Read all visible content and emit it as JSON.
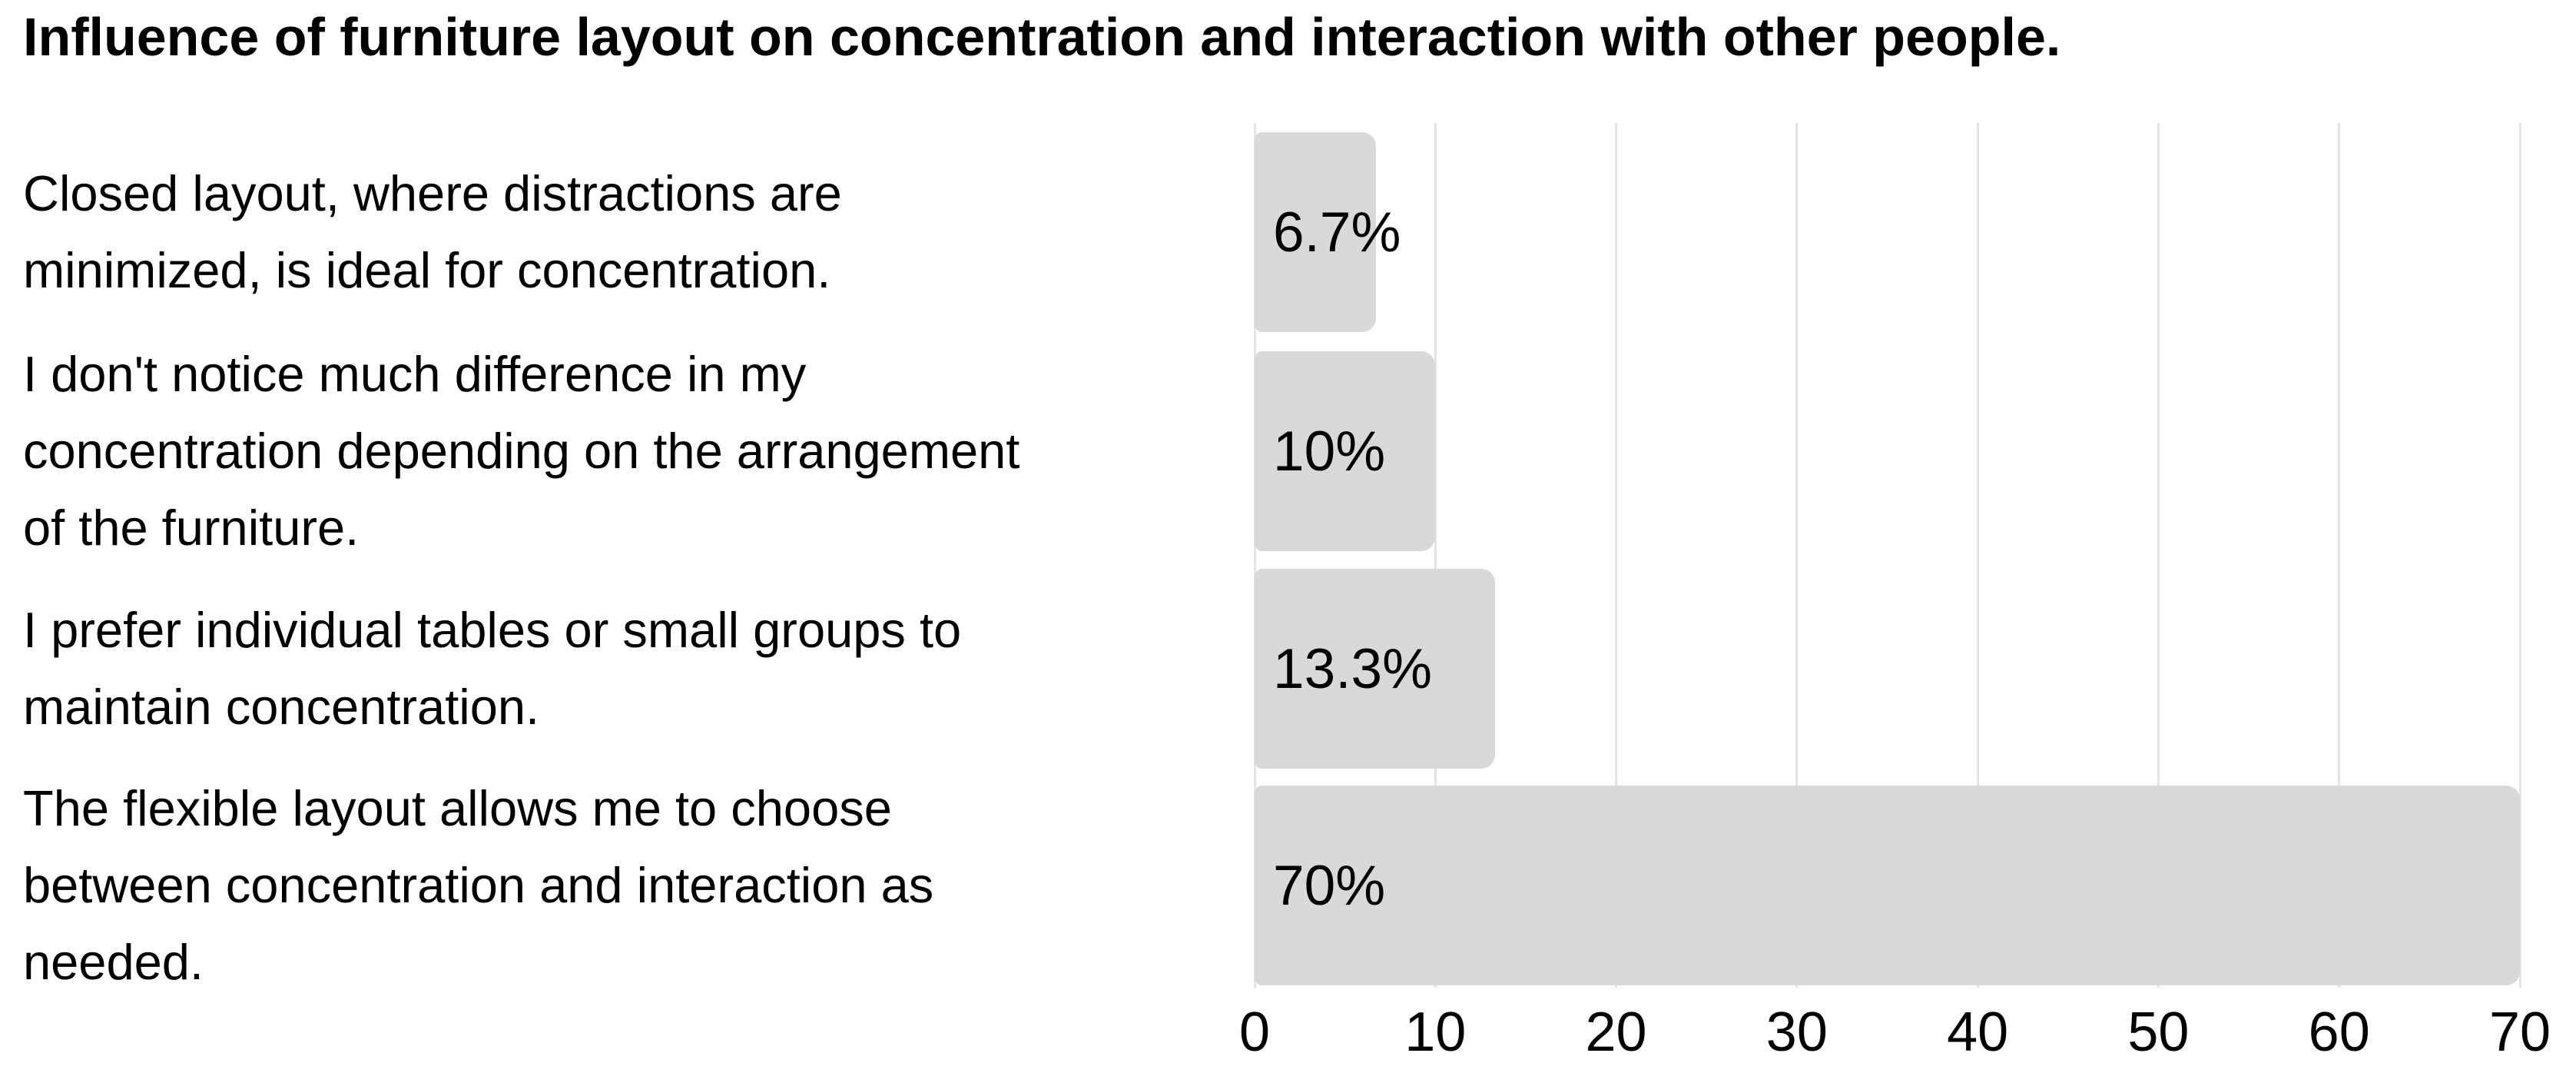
{
  "title": "Influence of furniture layout on concentration and interaction with other people.",
  "rows": [
    {
      "label": "Closed layout, where distractions are minimized, is ideal for concentration.",
      "lines": [
        "Closed layout, where distractions are",
        "minimized, is ideal for concentration."
      ],
      "value_label": "6.7%"
    },
    {
      "label": "I don't notice much difference in my concentration depending on the arrangement of the furniture.",
      "lines": [
        "I don't notice much difference in my",
        "concentration depending on the arrangement",
        "of the furniture."
      ],
      "value_label": "10%"
    },
    {
      "label": "I prefer individual tables or small groups to maintain concentration.",
      "lines": [
        "I prefer individual tables or small groups to",
        "maintain concentration."
      ],
      "value_label": "13.3%"
    },
    {
      "label": "The flexible layout allows me to choose between concentration and interaction as needed.",
      "lines": [
        "The flexible layout allows me to choose",
        "between concentration and interaction as",
        "needed."
      ],
      "value_label": "70%"
    }
  ],
  "chart_data": {
    "type": "bar",
    "orientation": "horizontal",
    "title": "Influence of furniture layout on concentration and interaction with other people.",
    "categories": [
      "Closed layout, where distractions are minimized, is ideal for concentration.",
      "I don't notice much difference in my concentration depending on the arrangement of the furniture.",
      "I prefer individual tables or small groups to maintain concentration.",
      "The flexible layout allows me to choose between concentration and interaction as needed."
    ],
    "values": [
      6.7,
      10,
      13.3,
      70
    ],
    "value_labels": [
      "6.7%",
      "10%",
      "13.3%",
      "70%"
    ],
    "xlabel": "",
    "ylabel": "",
    "xlim": [
      0,
      70
    ],
    "xticks": [
      0,
      10,
      20,
      30,
      40,
      50,
      60,
      70
    ],
    "grid": "vertical-on",
    "legend": "none",
    "bar_color": "#d9d9d9",
    "gridline_color": "#e4e4e4",
    "text_color": "#000000",
    "background_color": "#ffffff"
  }
}
